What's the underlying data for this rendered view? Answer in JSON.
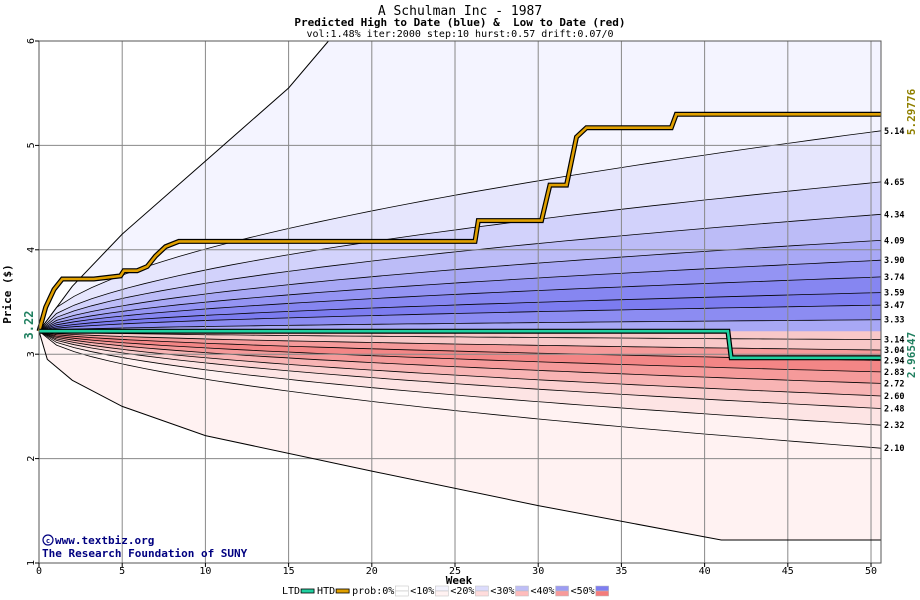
{
  "chart_data": {
    "type": "area",
    "title": "A Schulman Inc - 1987",
    "subtitle": "Predicted High to Date (blue) &  Low to Date (red)",
    "params": "vol:1.48% iter:2000 step:10 hurst:0.57 drift:0.07/0",
    "xlabel": "Week",
    "ylabel": "Price ($)",
    "xlim": [
      0,
      50.6
    ],
    "ylim": [
      1,
      6
    ],
    "x_ticks": [
      0,
      5,
      10,
      15,
      20,
      25,
      30,
      35,
      40,
      45,
      50
    ],
    "y_ticks": [
      1,
      2,
      3,
      4,
      5,
      6
    ],
    "start_price": 3.22,
    "start_label": "3.22",
    "high_to_date_final": 5.29776,
    "high_label": "5.29776",
    "low_to_date_final": 2.96547,
    "low_label": "2.96547",
    "upper_band_ends": [
      5.14,
      4.65,
      4.34,
      4.09,
      3.9,
      3.74,
      3.59,
      3.47,
      3.33,
      3.14
    ],
    "upper_band_labels": [
      "5.14",
      "4.65",
      "4.34",
      "4.09",
      "3.90",
      "3.74",
      "3.59",
      "3.47",
      "3.33",
      "3.14"
    ],
    "lower_band_ends": [
      3.04,
      2.94,
      2.83,
      2.72,
      2.6,
      2.48,
      2.32,
      2.1
    ],
    "lower_band_labels": [
      "3.04",
      "2.94",
      "2.83",
      "2.72",
      "2.60",
      "2.48",
      "2.32",
      "2.10"
    ],
    "outer_upper_curve": [
      [
        0,
        3.22
      ],
      [
        2,
        3.65
      ],
      [
        5,
        4.15
      ],
      [
        10,
        4.85
      ],
      [
        15,
        5.55
      ],
      [
        17.4,
        6
      ]
    ],
    "outer_lower_curve": [
      [
        0,
        3.22
      ],
      [
        0.5,
        2.95
      ],
      [
        2,
        2.75
      ],
      [
        5,
        2.5
      ],
      [
        10,
        2.22
      ],
      [
        20,
        1.88
      ],
      [
        30,
        1.55
      ],
      [
        40,
        1.25
      ],
      [
        41,
        1.22
      ],
      [
        50.6,
        1.22
      ]
    ],
    "high_to_date_path": [
      [
        0,
        3.22
      ],
      [
        0.4,
        3.45
      ],
      [
        0.9,
        3.62
      ],
      [
        1.4,
        3.72
      ],
      [
        3.3,
        3.72
      ],
      [
        4.9,
        3.75
      ],
      [
        5.1,
        3.8
      ],
      [
        5.9,
        3.8
      ],
      [
        6.5,
        3.84
      ],
      [
        7.0,
        3.94
      ],
      [
        7.6,
        4.03
      ],
      [
        8.4,
        4.08
      ],
      [
        26.2,
        4.08
      ],
      [
        26.4,
        4.28
      ],
      [
        30.2,
        4.28
      ],
      [
        30.7,
        4.62
      ],
      [
        31.7,
        4.62
      ],
      [
        32.3,
        5.08
      ],
      [
        32.9,
        5.17
      ],
      [
        38.0,
        5.17
      ],
      [
        38.3,
        5.29776
      ],
      [
        50.6,
        5.29776
      ]
    ],
    "low_to_date_path": [
      [
        0,
        3.22
      ],
      [
        41.4,
        3.22
      ],
      [
        41.6,
        2.96547
      ],
      [
        50.6,
        2.96547
      ]
    ],
    "credit_line1": "www.textbiz.org",
    "credit_line2": "The Research Foundation of SUNY",
    "legend": [
      {
        "label": "LTD",
        "kind": "line",
        "color": "#20d0a0"
      },
      {
        "label": "HTD",
        "kind": "line",
        "color": "#e0a000"
      },
      {
        "label": "prob:0%",
        "kind": "swatch",
        "colors": [
          "#ffffff",
          "#ffffff"
        ]
      },
      {
        "label": "<10%",
        "kind": "swatch",
        "colors": [
          "#f4f4ff",
          "#fff2f2"
        ]
      },
      {
        "label": "<20%",
        "kind": "swatch",
        "colors": [
          "#dcdcfc",
          "#ffdcdc"
        ]
      },
      {
        "label": "<30%",
        "kind": "swatch",
        "colors": [
          "#bebef6",
          "#ffbcbc"
        ]
      },
      {
        "label": "<40%",
        "kind": "swatch",
        "colors": [
          "#9c9cf2",
          "#f89a9a"
        ]
      },
      {
        "label": "<50%",
        "kind": "swatch",
        "colors": [
          "#7e7ef0",
          "#f47c7c"
        ]
      }
    ],
    "colors": {
      "upper_fills": [
        "#f4f4ff",
        "#e6e6fd",
        "#d2d2fb",
        "#bcbcf7",
        "#a8a8f5",
        "#9494f3",
        "#8686f1",
        "#7c7cf0",
        "#8c8cf2",
        "#a8a8f5"
      ],
      "lower_fills": [
        "#ffffff",
        "#f8c8c8",
        "#f59a9a",
        "#f38686",
        "#f59a9a",
        "#f8b4b4",
        "#fbd0d0",
        "#fde4e4",
        "#fff2f2"
      ],
      "htd": "#e0a000",
      "ltd": "#20d0a0",
      "high_label_color": "#908000",
      "low_label_color": "#208060",
      "start_label_color": "#208060",
      "credit_color": "#000080",
      "grid": "#888888"
    },
    "grid": true
  }
}
